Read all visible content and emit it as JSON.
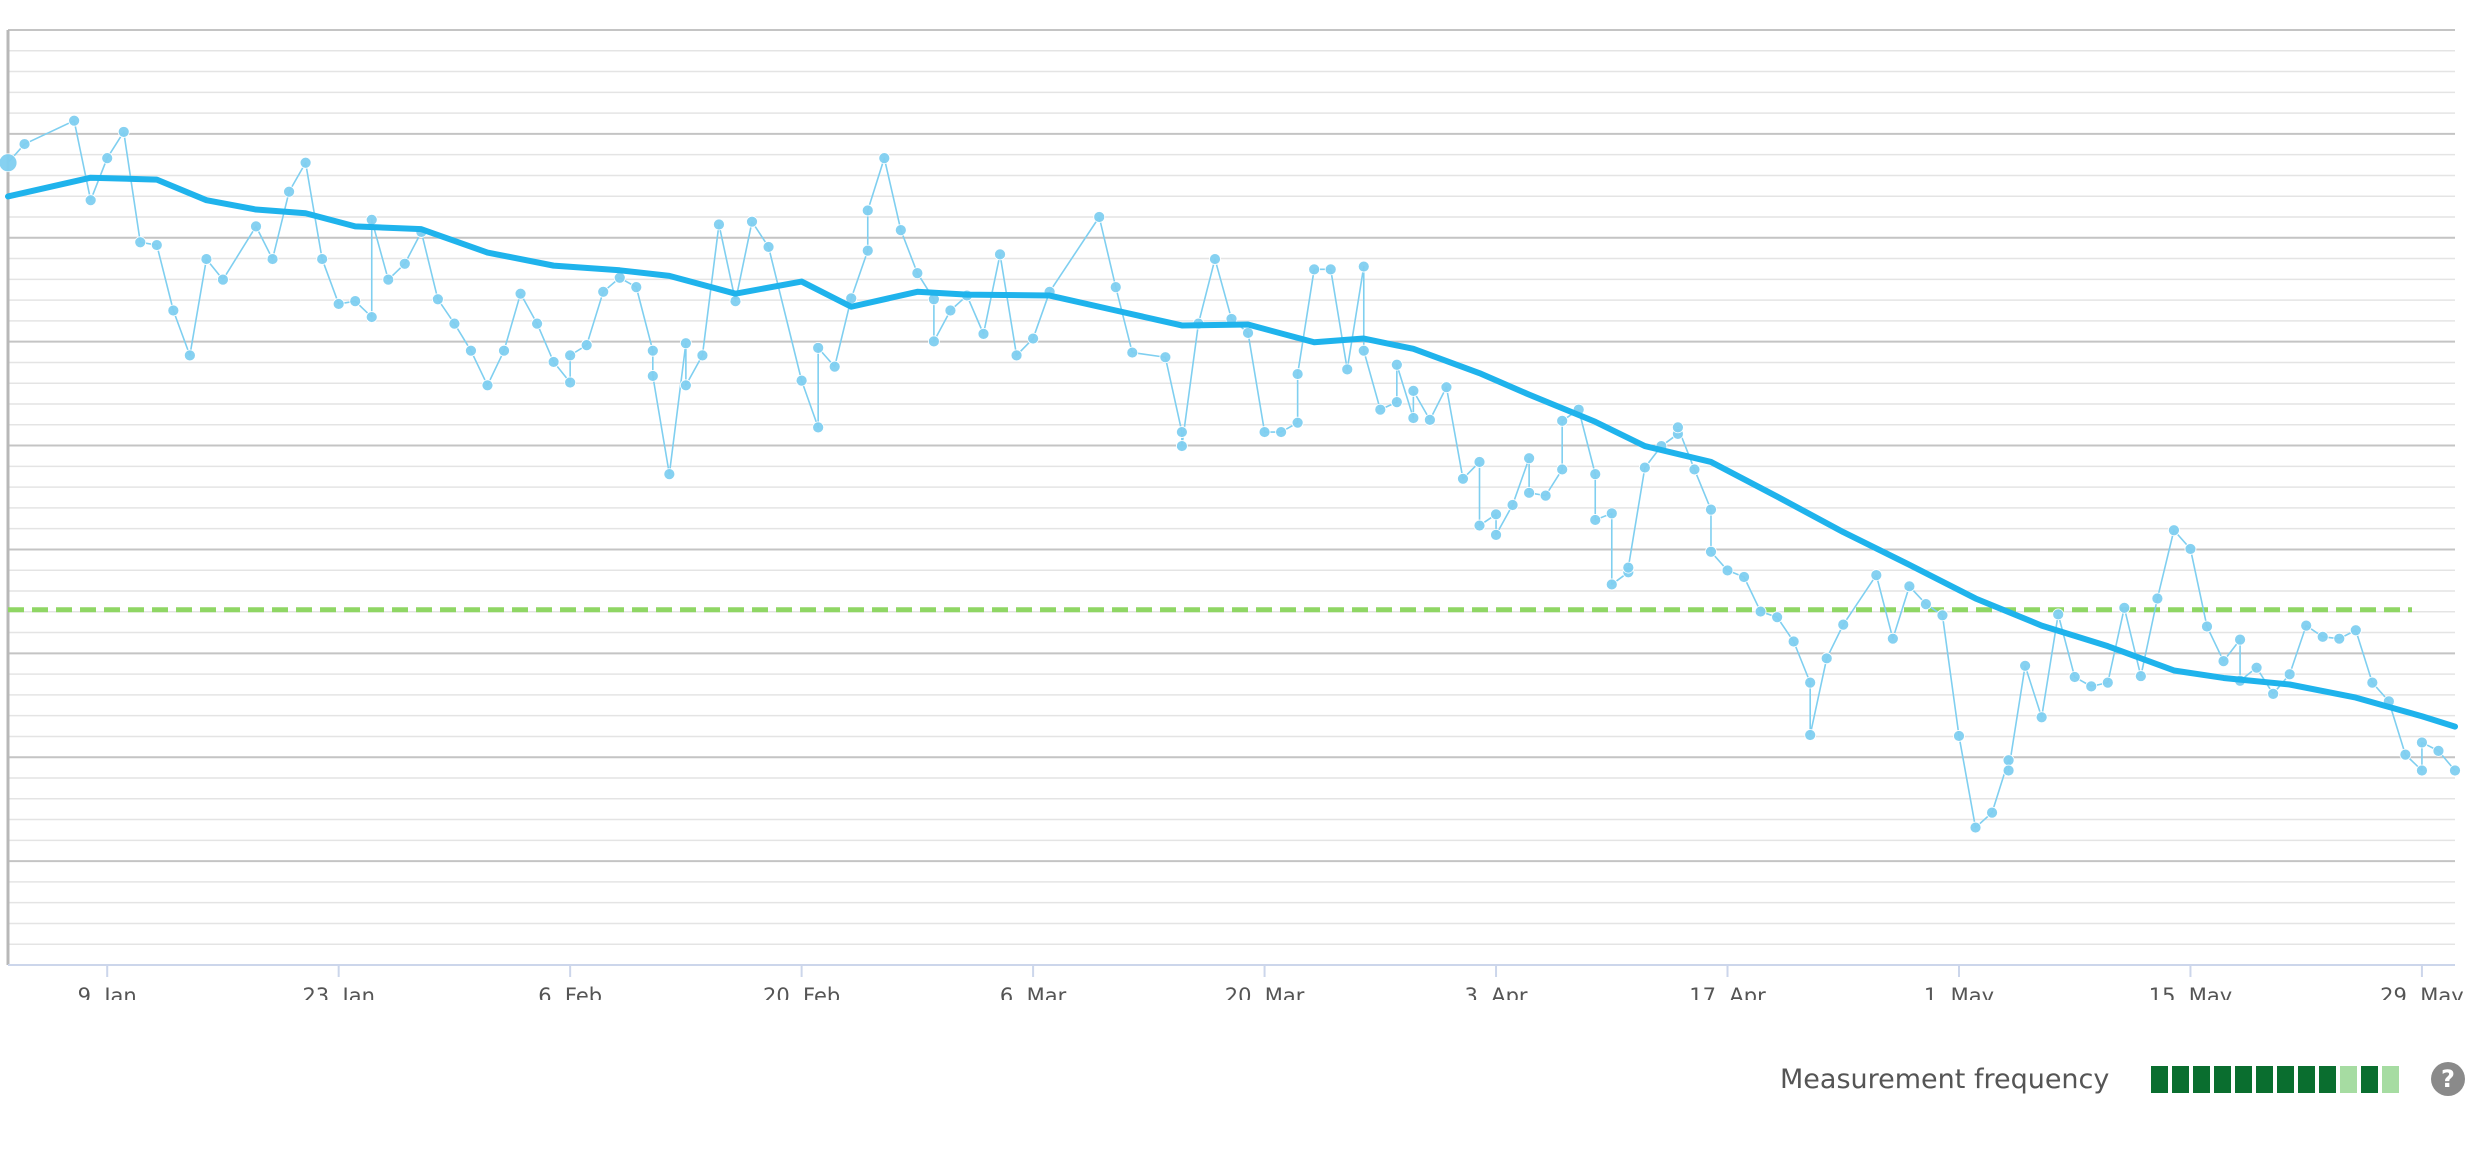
{
  "chart_data": {
    "type": "line",
    "title": "",
    "xlabel": "",
    "ylabel": "",
    "x_tick_labels": [
      "9. Jan",
      "23. Jan",
      "6. Feb",
      "20. Feb",
      "6. Mar",
      "20. Mar",
      "3. Apr",
      "17. Apr",
      "1. May",
      "15. May",
      "29. May"
    ],
    "x_range": [
      "2025-01-03",
      "2025-05-31"
    ],
    "y_range_note": "no y-axis labels shown",
    "grid": true,
    "target_line": {
      "level": 0.38,
      "color": "#8fd664",
      "style": "dashed"
    },
    "series": [
      {
        "kind": "measurements",
        "color": "#7fcff0",
        "points": [
          [
            "2025-01-03",
            0.858
          ],
          [
            "2025-01-04",
            0.878
          ],
          [
            "2025-01-07",
            0.903
          ],
          [
            "2025-01-08",
            0.818
          ],
          [
            "2025-01-09",
            0.863
          ],
          [
            "2025-01-10",
            0.891
          ],
          [
            "2025-01-11",
            0.773
          ],
          [
            "2025-01-12",
            0.77
          ],
          [
            "2025-01-13",
            0.7
          ],
          [
            "2025-01-14",
            0.652
          ],
          [
            "2025-01-15",
            0.755
          ],
          [
            "2025-01-16",
            0.733
          ],
          [
            "2025-01-18",
            0.79
          ],
          [
            "2025-01-19",
            0.755
          ],
          [
            "2025-01-20",
            0.827
          ],
          [
            "2025-01-21",
            0.858
          ],
          [
            "2025-01-22",
            0.755
          ],
          [
            "2025-01-23",
            0.707
          ],
          [
            "2025-01-24",
            0.71
          ],
          [
            "2025-01-25",
            0.693
          ],
          [
            "2025-01-25",
            0.797
          ],
          [
            "2025-01-26",
            0.733
          ],
          [
            "2025-01-27",
            0.75
          ],
          [
            "2025-01-28",
            0.784
          ],
          [
            "2025-01-29",
            0.712
          ],
          [
            "2025-01-30",
            0.686
          ],
          [
            "2025-01-31",
            0.657
          ],
          [
            "2025-02-01",
            0.62
          ],
          [
            "2025-02-02",
            0.657
          ],
          [
            "2025-02-03",
            0.718
          ],
          [
            "2025-02-04",
            0.686
          ],
          [
            "2025-02-05",
            0.645
          ],
          [
            "2025-02-06",
            0.623
          ],
          [
            "2025-02-06",
            0.652
          ],
          [
            "2025-02-07",
            0.663
          ],
          [
            "2025-02-08",
            0.72
          ],
          [
            "2025-02-09",
            0.735
          ],
          [
            "2025-02-10",
            0.725
          ],
          [
            "2025-02-11",
            0.657
          ],
          [
            "2025-02-11",
            0.63
          ],
          [
            "2025-02-12",
            0.525
          ],
          [
            "2025-02-13",
            0.665
          ],
          [
            "2025-02-13",
            0.62
          ],
          [
            "2025-02-14",
            0.652
          ],
          [
            "2025-02-15",
            0.792
          ],
          [
            "2025-02-16",
            0.71
          ],
          [
            "2025-02-17",
            0.795
          ],
          [
            "2025-02-18",
            0.768
          ],
          [
            "2025-02-20",
            0.625
          ],
          [
            "2025-02-21",
            0.575
          ],
          [
            "2025-02-21",
            0.66
          ],
          [
            "2025-02-22",
            0.64
          ],
          [
            "2025-02-23",
            0.713
          ],
          [
            "2025-02-24",
            0.764
          ],
          [
            "2025-02-24",
            0.807
          ],
          [
            "2025-02-25",
            0.863
          ],
          [
            "2025-02-26",
            0.786
          ],
          [
            "2025-02-27",
            0.74
          ],
          [
            "2025-02-28",
            0.712
          ],
          [
            "2025-02-28",
            0.667
          ],
          [
            "2025-03-01",
            0.7
          ],
          [
            "2025-03-02",
            0.716
          ],
          [
            "2025-03-03",
            0.675
          ],
          [
            "2025-03-04",
            0.76
          ],
          [
            "2025-03-05",
            0.652
          ],
          [
            "2025-03-06",
            0.67
          ],
          [
            "2025-03-07",
            0.72
          ],
          [
            "2025-03-10",
            0.8
          ],
          [
            "2025-03-11",
            0.725
          ],
          [
            "2025-03-12",
            0.655
          ],
          [
            "2025-03-14",
            0.65
          ],
          [
            "2025-03-15",
            0.57
          ],
          [
            "2025-03-15",
            0.555
          ],
          [
            "2025-03-16",
            0.686
          ],
          [
            "2025-03-17",
            0.755
          ],
          [
            "2025-03-18",
            0.691
          ],
          [
            "2025-03-19",
            0.676
          ],
          [
            "2025-03-20",
            0.57
          ],
          [
            "2025-03-21",
            0.57
          ],
          [
            "2025-03-22",
            0.58
          ],
          [
            "2025-03-22",
            0.632
          ],
          [
            "2025-03-23",
            0.744
          ],
          [
            "2025-03-24",
            0.744
          ],
          [
            "2025-03-25",
            0.637
          ],
          [
            "2025-03-26",
            0.747
          ],
          [
            "2025-03-26",
            0.657
          ],
          [
            "2025-03-27",
            0.594
          ],
          [
            "2025-03-28",
            0.602
          ],
          [
            "2025-03-28",
            0.642
          ],
          [
            "2025-03-29",
            0.585
          ],
          [
            "2025-03-29",
            0.614
          ],
          [
            "2025-03-30",
            0.583
          ],
          [
            "2025-03-31",
            0.618
          ],
          [
            "2025-04-01",
            0.52
          ],
          [
            "2025-04-02",
            0.538
          ],
          [
            "2025-04-02",
            0.47
          ],
          [
            "2025-04-03",
            0.482
          ],
          [
            "2025-04-03",
            0.46
          ],
          [
            "2025-04-04",
            0.492
          ],
          [
            "2025-04-05",
            0.542
          ],
          [
            "2025-04-05",
            0.505
          ],
          [
            "2025-04-06",
            0.502
          ],
          [
            "2025-04-07",
            0.53
          ],
          [
            "2025-04-07",
            0.582
          ],
          [
            "2025-04-08",
            0.594
          ],
          [
            "2025-04-09",
            0.525
          ],
          [
            "2025-04-09",
            0.476
          ],
          [
            "2025-04-10",
            0.483
          ],
          [
            "2025-04-10",
            0.407
          ],
          [
            "2025-04-11",
            0.42
          ],
          [
            "2025-04-11",
            0.425
          ],
          [
            "2025-04-12",
            0.532
          ],
          [
            "2025-04-13",
            0.555
          ],
          [
            "2025-04-14",
            0.568
          ],
          [
            "2025-04-14",
            0.575
          ],
          [
            "2025-04-15",
            0.53
          ],
          [
            "2025-04-16",
            0.487
          ],
          [
            "2025-04-16",
            0.442
          ],
          [
            "2025-04-17",
            0.422
          ],
          [
            "2025-04-18",
            0.415
          ],
          [
            "2025-04-19",
            0.378
          ],
          [
            "2025-04-20",
            0.372
          ],
          [
            "2025-04-21",
            0.346
          ],
          [
            "2025-04-22",
            0.302
          ],
          [
            "2025-04-22",
            0.246
          ],
          [
            "2025-04-23",
            0.328
          ],
          [
            "2025-04-24",
            0.364
          ],
          [
            "2025-04-26",
            0.417
          ],
          [
            "2025-04-27",
            0.349
          ],
          [
            "2025-04-28",
            0.405
          ],
          [
            "2025-04-29",
            0.386
          ],
          [
            "2025-04-30",
            0.374
          ],
          [
            "2025-05-01",
            0.245
          ],
          [
            "2025-05-02",
            0.147
          ],
          [
            "2025-05-03",
            0.163
          ],
          [
            "2025-05-04",
            0.219
          ],
          [
            "2025-05-04",
            0.208
          ],
          [
            "2025-05-05",
            0.32
          ],
          [
            "2025-05-06",
            0.265
          ],
          [
            "2025-05-07",
            0.375
          ],
          [
            "2025-05-08",
            0.308
          ],
          [
            "2025-05-09",
            0.298
          ],
          [
            "2025-05-10",
            0.302
          ],
          [
            "2025-05-11",
            0.382
          ],
          [
            "2025-05-12",
            0.309
          ],
          [
            "2025-05-13",
            0.392
          ],
          [
            "2025-05-14",
            0.465
          ],
          [
            "2025-05-15",
            0.445
          ],
          [
            "2025-05-16",
            0.362
          ],
          [
            "2025-05-17",
            0.325
          ],
          [
            "2025-05-18",
            0.348
          ],
          [
            "2025-05-18",
            0.304
          ],
          [
            "2025-05-19",
            0.318
          ],
          [
            "2025-05-20",
            0.29
          ],
          [
            "2025-05-21",
            0.311
          ],
          [
            "2025-05-22",
            0.363
          ],
          [
            "2025-05-23",
            0.351
          ],
          [
            "2025-05-24",
            0.349
          ],
          [
            "2025-05-25",
            0.358
          ],
          [
            "2025-05-26",
            0.302
          ],
          [
            "2025-05-27",
            0.282
          ],
          [
            "2025-05-28",
            0.225
          ],
          [
            "2025-05-29",
            0.208
          ],
          [
            "2025-05-29",
            0.238
          ],
          [
            "2025-05-30",
            0.229
          ],
          [
            "2025-05-31",
            0.208
          ]
        ]
      },
      {
        "kind": "moving-average",
        "color": "#1fb3ec",
        "points": [
          [
            "2025-01-03",
            0.822
          ],
          [
            "2025-01-08",
            0.842
          ],
          [
            "2025-01-12",
            0.84
          ],
          [
            "2025-01-15",
            0.818
          ],
          [
            "2025-01-18",
            0.808
          ],
          [
            "2025-01-21",
            0.804
          ],
          [
            "2025-01-24",
            0.79
          ],
          [
            "2025-01-28",
            0.787
          ],
          [
            "2025-02-01",
            0.762
          ],
          [
            "2025-02-05",
            0.748
          ],
          [
            "2025-02-09",
            0.743
          ],
          [
            "2025-02-12",
            0.737
          ],
          [
            "2025-02-16",
            0.718
          ],
          [
            "2025-02-20",
            0.731
          ],
          [
            "2025-02-23",
            0.704
          ],
          [
            "2025-02-27",
            0.72
          ],
          [
            "2025-03-02",
            0.717
          ],
          [
            "2025-03-07",
            0.716
          ],
          [
            "2025-03-11",
            0.7
          ],
          [
            "2025-03-15",
            0.684
          ],
          [
            "2025-03-19",
            0.685
          ],
          [
            "2025-03-23",
            0.666
          ],
          [
            "2025-03-26",
            0.67
          ],
          [
            "2025-03-29",
            0.659
          ],
          [
            "2025-04-02",
            0.633
          ],
          [
            "2025-04-05",
            0.61
          ],
          [
            "2025-04-09",
            0.581
          ],
          [
            "2025-04-12",
            0.555
          ],
          [
            "2025-04-16",
            0.538
          ],
          [
            "2025-04-20",
            0.501
          ],
          [
            "2025-04-24",
            0.463
          ],
          [
            "2025-04-28",
            0.428
          ],
          [
            "2025-05-02",
            0.392
          ],
          [
            "2025-05-06",
            0.363
          ],
          [
            "2025-05-10",
            0.341
          ],
          [
            "2025-05-14",
            0.315
          ],
          [
            "2025-05-17",
            0.307
          ],
          [
            "2025-05-21",
            0.3
          ],
          [
            "2025-05-25",
            0.286
          ],
          [
            "2025-05-29",
            0.266
          ],
          [
            "2025-05-31",
            0.255
          ]
        ]
      }
    ]
  },
  "footer": {
    "frequency_label": "Measurement frequency",
    "frequency_levels": [
      1,
      1,
      1,
      1,
      1,
      1,
      1,
      1,
      1,
      0,
      1,
      0
    ],
    "colors": {
      "high": "#0a6e2f",
      "low": "#a6dca2"
    },
    "help_icon": "question-circle-icon",
    "help_glyph": "?"
  }
}
